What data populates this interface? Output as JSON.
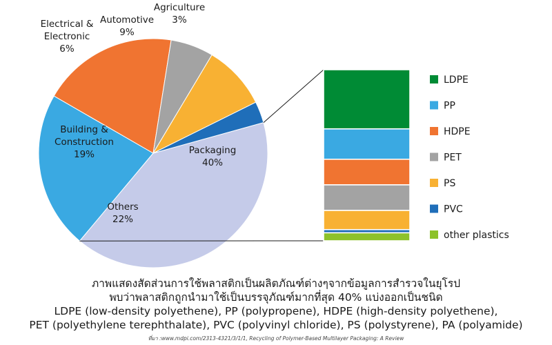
{
  "chart_data": [
    {
      "type": "pie",
      "categories": [
        "Packaging",
        "Others",
        "Building & Construction",
        "Electrical & Electronic",
        "Automotive",
        "Agriculture"
      ],
      "label_lines": [
        [
          "Packaging",
          "40%"
        ],
        [
          "Others",
          "22%"
        ],
        [
          "Building &",
          "Construction",
          "19%"
        ],
        [
          "Electrical &",
          "Electronic",
          "6%"
        ],
        [
          "Automotive",
          "9%"
        ],
        [
          "Agriculture",
          "3%"
        ]
      ],
      "values": [
        40,
        22,
        19,
        6,
        9,
        3
      ],
      "colors": [
        "#c5cbe9",
        "#3aa9e2",
        "#f07431",
        "#a3a3a3",
        "#f8b133",
        "#1f6eb9"
      ]
    },
    {
      "type": "bar",
      "stacked": true,
      "categories": [
        "LDPE",
        "PP",
        "HDPE",
        "PET",
        "PS",
        "PVC",
        "other plastics"
      ],
      "values": [
        37,
        19,
        16,
        16,
        12,
        2,
        5
      ],
      "colors": [
        "#008b35",
        "#3aa9e2",
        "#f07431",
        "#a3a3a3",
        "#f8b133",
        "#1f6eb9",
        "#8dc22a"
      ],
      "legend_position": "right"
    }
  ],
  "caption": {
    "th_line1": "ภาพแสดงสัดส่วนการใช้พลาสติกเป็นผลิตภัณฑ์ต่างๆจากข้อมูลการสำรวจในยุโรป",
    "th_line2": "พบว่าพลาสติกถูกนำมาใช้เป็นบรรจุภัณฑ์มากที่สุด 40% แบ่งออกเป็นชนิด",
    "en_line3": "LDPE (low-density polyethene), PP (polypropene), HDPE (high-density polyethene),",
    "en_line4": "PET (polyethylene terephthalate), PVC (polyvinyl chloride), PS (polystyrene), PA (polyamide)"
  },
  "source": "ที่มา :www.mdpi.com/2313-4321/3/1/1, Recycling of Polymer-Based Multilayer Packaging: A Review"
}
